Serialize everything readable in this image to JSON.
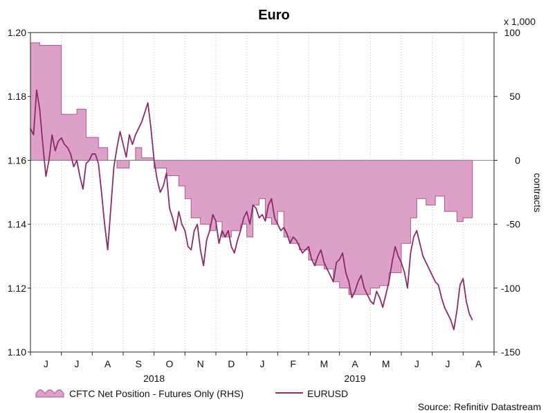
{
  "chart_data": {
    "type": "line",
    "title": "Euro",
    "left_axis": {
      "ylim": [
        1.1,
        1.2
      ],
      "ticks": [
        "1.10",
        "1.12",
        "1.14",
        "1.16",
        "1.18",
        "1.20"
      ]
    },
    "right_axis": {
      "label": "contracts",
      "multiplier_label": "x 1,000",
      "ylim": [
        -150,
        100
      ],
      "ticks": [
        "-150",
        "-100",
        "-50",
        "0",
        "50",
        "100"
      ]
    },
    "months": [
      "J",
      "J",
      "A",
      "S",
      "O",
      "N",
      "D",
      "J",
      "F",
      "M",
      "A",
      "M",
      "J",
      "J",
      "A"
    ],
    "years": [
      "2018",
      "2019"
    ],
    "grid": true,
    "legend_position": "bottom-left",
    "source": "Source: Refinitiv Datastream",
    "colors": {
      "area_fill": "#dda0c8",
      "area_stroke": "#b0558d",
      "line": "#8b2a6b",
      "grid": "#bbbbbb"
    },
    "series": [
      {
        "name": "CFTC Net Position - Futures Only (RHS)",
        "type": "area",
        "axis": "right",
        "x": [
          0,
          0.2,
          0.3,
          0.7,
          1.0,
          1.3,
          1.5,
          1.8,
          2.2,
          2.5,
          2.8,
          3.2,
          3.4,
          3.6,
          4.0,
          4.4,
          4.8,
          5.0,
          5.2,
          5.5,
          5.8,
          6.0,
          6.2,
          6.5,
          6.8,
          7.0,
          7.2,
          7.4,
          7.6,
          7.8,
          8.0,
          8.2,
          8.4,
          8.7,
          9.0,
          9.2,
          9.5,
          9.8,
          10.0,
          10.3,
          10.6,
          11.0,
          11.3,
          11.6,
          12.0,
          12.3,
          12.5,
          12.8,
          13.1,
          13.4,
          13.8,
          14.0,
          14.3
        ],
        "values": [
          92,
          92,
          90,
          90,
          36,
          36,
          40,
          18,
          10,
          0,
          -6,
          0,
          10,
          2,
          -6,
          -12,
          -20,
          -30,
          -45,
          -50,
          -55,
          -48,
          -60,
          -55,
          -50,
          -60,
          -35,
          -30,
          -45,
          -50,
          -40,
          -60,
          -65,
          -70,
          -78,
          -82,
          -85,
          -95,
          -100,
          -105,
          -105,
          -100,
          -98,
          -88,
          -65,
          -45,
          -30,
          -35,
          -28,
          -40,
          -48,
          -45,
          -38
        ],
        "values_note": "in thousands of contracts"
      },
      {
        "name": "EURUSD",
        "type": "line",
        "axis": "left",
        "x": [
          0,
          0.1,
          0.2,
          0.3,
          0.4,
          0.5,
          0.6,
          0.7,
          0.8,
          0.9,
          1.0,
          1.1,
          1.2,
          1.3,
          1.4,
          1.5,
          1.6,
          1.7,
          1.8,
          1.9,
          2.0,
          2.1,
          2.2,
          2.3,
          2.4,
          2.5,
          2.6,
          2.7,
          2.8,
          2.9,
          3.0,
          3.1,
          3.2,
          3.3,
          3.4,
          3.5,
          3.6,
          3.7,
          3.8,
          3.9,
          4.0,
          4.1,
          4.2,
          4.3,
          4.4,
          4.5,
          4.6,
          4.7,
          4.8,
          4.9,
          5.0,
          5.1,
          5.2,
          5.3,
          5.4,
          5.5,
          5.6,
          5.7,
          5.8,
          5.9,
          6.0,
          6.1,
          6.2,
          6.3,
          6.4,
          6.5,
          6.6,
          6.7,
          6.8,
          6.9,
          7.0,
          7.1,
          7.2,
          7.3,
          7.4,
          7.5,
          7.6,
          7.7,
          7.8,
          7.9,
          8.0,
          8.1,
          8.2,
          8.3,
          8.4,
          8.5,
          8.6,
          8.7,
          8.8,
          8.9,
          9.0,
          9.1,
          9.2,
          9.3,
          9.4,
          9.5,
          9.6,
          9.7,
          9.8,
          9.9,
          10.0,
          10.1,
          10.2,
          10.3,
          10.4,
          10.5,
          10.6,
          10.7,
          10.8,
          10.9,
          11.0,
          11.1,
          11.2,
          11.3,
          11.4,
          11.5,
          11.6,
          11.7,
          11.8,
          11.9,
          12.0,
          12.1,
          12.2,
          12.3,
          12.4,
          12.5,
          12.6,
          12.7,
          12.8,
          12.9,
          13.0,
          13.1,
          13.2,
          13.3,
          13.4,
          13.5,
          13.6,
          13.7,
          13.8,
          13.9,
          14.0,
          14.1,
          14.2,
          14.3
        ],
        "values": [
          1.17,
          1.168,
          1.182,
          1.176,
          1.165,
          1.155,
          1.16,
          1.168,
          1.163,
          1.166,
          1.167,
          1.165,
          1.164,
          1.162,
          1.158,
          1.16,
          1.155,
          1.151,
          1.159,
          1.16,
          1.162,
          1.162,
          1.159,
          1.15,
          1.14,
          1.132,
          1.145,
          1.158,
          1.164,
          1.169,
          1.165,
          1.161,
          1.168,
          1.165,
          1.168,
          1.17,
          1.172,
          1.175,
          1.178,
          1.17,
          1.16,
          1.154,
          1.15,
          1.152,
          1.156,
          1.145,
          1.142,
          1.138,
          1.144,
          1.14,
          1.138,
          1.133,
          1.132,
          1.138,
          1.14,
          1.132,
          1.127,
          1.135,
          1.138,
          1.143,
          1.141,
          1.134,
          1.138,
          1.136,
          1.138,
          1.133,
          1.131,
          1.135,
          1.138,
          1.142,
          1.144,
          1.14,
          1.146,
          1.145,
          1.142,
          1.143,
          1.141,
          1.146,
          1.148,
          1.142,
          1.14,
          1.138,
          1.139,
          1.137,
          1.134,
          1.136,
          1.135,
          1.133,
          1.131,
          1.132,
          1.133,
          1.129,
          1.127,
          1.13,
          1.132,
          1.128,
          1.126,
          1.124,
          1.122,
          1.128,
          1.129,
          1.131,
          1.125,
          1.122,
          1.117,
          1.119,
          1.122,
          1.124,
          1.12,
          1.118,
          1.116,
          1.115,
          1.119,
          1.117,
          1.114,
          1.118,
          1.122,
          1.128,
          1.133,
          1.13,
          1.128,
          1.125,
          1.12,
          1.131,
          1.136,
          1.138,
          1.134,
          1.13,
          1.128,
          1.126,
          1.124,
          1.122,
          1.121,
          1.117,
          1.114,
          1.112,
          1.11,
          1.107,
          1.113,
          1.121,
          1.123,
          1.116,
          1.112,
          1.11
        ]
      }
    ]
  }
}
